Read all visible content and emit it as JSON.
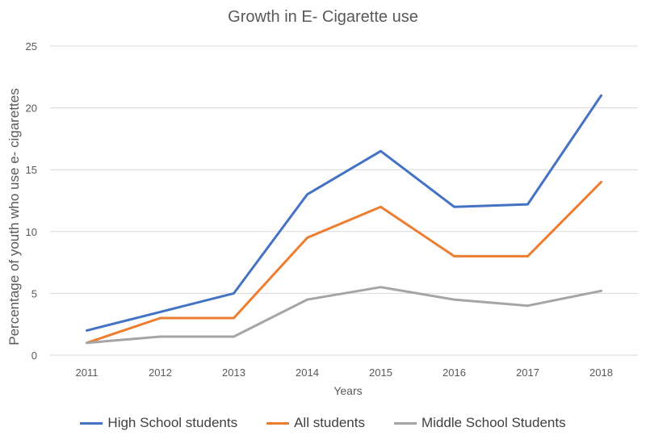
{
  "chart_data": {
    "type": "line",
    "title": "Growth in E- Cigarette use",
    "xlabel": "Years",
    "ylabel": "Percentage of youth who use e- cigarettes",
    "categories": [
      "2011",
      "2012",
      "2013",
      "2014",
      "2015",
      "2016",
      "2017",
      "2018"
    ],
    "ylim": [
      0,
      25
    ],
    "yticks": [
      "0",
      "5",
      "10",
      "15",
      "20",
      "25"
    ],
    "grid": true,
    "legend_position": "bottom",
    "series": [
      {
        "name": "High School students",
        "color": "#4472C4",
        "values": [
          2,
          3.5,
          5,
          13,
          16.5,
          12,
          12.2,
          21
        ]
      },
      {
        "name": "All students",
        "color": "#ED7D31",
        "values": [
          1,
          3,
          3,
          9.5,
          12,
          8,
          8,
          14
        ]
      },
      {
        "name": "Middle School Students",
        "color": "#A5A5A5",
        "values": [
          1,
          1.5,
          1.5,
          4.5,
          5.5,
          4.5,
          4,
          5.2
        ]
      }
    ]
  }
}
